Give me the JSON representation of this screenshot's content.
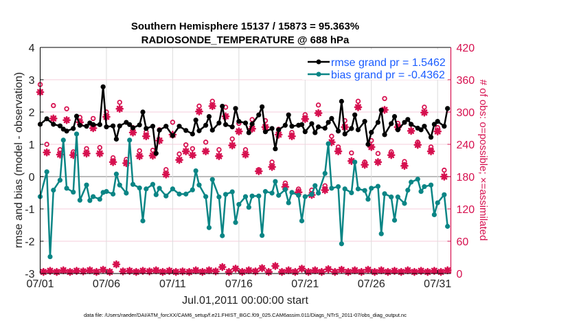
{
  "chart_data": {
    "type": "line",
    "title": "Southern Hemisphere 15137 / 15873 = 95.363%",
    "subtitle": "RADIOSONDE_TEMPERATURE @ 688 hPa",
    "xlabel": "Jul.01,2011 00:00:00 start",
    "ylabel": "rmse and bias (model - observation)",
    "ylabel_right": "# of obs: o=possible; ×=assimilated",
    "footer": "data file: /Users/raeder/DAI/ATM_forcXX/CAM6_setup/f.e21.FHIST_BGC.f09_025.CAM6assim.011/Diags_NTrS_2011-07/obs_diag_output.nc",
    "xlim": [
      "07/01 00:00",
      "08/01 00:00"
    ],
    "ylim": [
      -3,
      4
    ],
    "ylim_right": [
      0,
      420
    ],
    "x_ticks": [
      "07/01",
      "07/06",
      "07/11",
      "07/16",
      "07/21",
      "07/26",
      "07/31"
    ],
    "y_ticks": [
      "-3",
      "-2",
      "-1",
      "0",
      "1",
      "2",
      "3",
      "4"
    ],
    "y_ticks_right": [
      "0",
      "60",
      "120",
      "180",
      "240",
      "300",
      "360",
      "420"
    ],
    "grid": true,
    "legend_placement": "top-right",
    "colors": {
      "rmse": "#000000",
      "bias": "#0a8585",
      "obs": "#d6104f",
      "legend_text": "#1a5cff"
    },
    "legend": [
      {
        "label": "rmse grand pr = 1.5462",
        "series": "rmse"
      },
      {
        "label": "bias grand pr = -0.4362",
        "series": "bias"
      }
    ],
    "series_columns": [
      "time",
      "rmse",
      "bias"
    ],
    "series": [
      [
        "07/01 00:00",
        1.62,
        -0.62
      ],
      [
        "07/01 12:00",
        1.79,
        0.15
      ],
      [
        "07/01 18:00",
        null,
        -2.48
      ],
      [
        "07/02 00:00",
        1.62,
        -0.42
      ],
      [
        "07/02 12:00",
        1.57,
        -0.11
      ],
      [
        "07/02 18:00",
        1.47,
        1.13
      ],
      [
        "07/03 00:00",
        1.41,
        -0.36
      ],
      [
        "07/03 12:00",
        1.49,
        -0.48
      ],
      [
        "07/03 18:00",
        1.87,
        1.32
      ],
      [
        "07/04 00:00",
        1.59,
        -0.73
      ],
      [
        "07/04 12:00",
        1.56,
        -0.26
      ],
      [
        "07/04 18:00",
        1.66,
        -0.74
      ],
      [
        "07/05 00:00",
        1.61,
        -0.62
      ],
      [
        "07/05 12:00",
        1.61,
        -0.7
      ],
      [
        "07/05 18:00",
        2.78,
        -0.49
      ],
      [
        "07/06 00:00",
        1.54,
        -0.46
      ],
      [
        "07/06 12:00",
        1.57,
        -0.54
      ],
      [
        "07/06 18:00",
        1.16,
        0.08
      ],
      [
        "07/07 00:00",
        1.57,
        -0.26
      ],
      [
        "07/07 12:00",
        1.68,
        -0.51
      ],
      [
        "07/07 18:00",
        1.61,
        1.13
      ],
      [
        "07/08 00:00",
        1.51,
        -0.24
      ],
      [
        "07/08 12:00",
        1.6,
        -0.35
      ],
      [
        "07/08 18:00",
        2.0,
        -1.37
      ],
      [
        "07/09 00:00",
        1.49,
        -0.38
      ],
      [
        "07/09 12:00",
        1.56,
        -0.24
      ],
      [
        "07/09 18:00",
        0.72,
        -0.56
      ],
      [
        "07/10 00:00",
        1.44,
        -0.36
      ],
      [
        "07/10 12:00",
        1.56,
        -0.6
      ],
      [
        "07/11 00:00",
        1.27,
        -0.38
      ],
      [
        "07/11 12:00",
        1.56,
        -0.54
      ],
      [
        "07/12 00:00",
        1.43,
        -0.54
      ],
      [
        "07/12 12:00",
        1.32,
        -0.41
      ],
      [
        "07/12 18:00",
        1.75,
        0.18
      ],
      [
        "07/13 00:00",
        1.42,
        -0.26
      ],
      [
        "07/13 12:00",
        1.59,
        -0.62
      ],
      [
        "07/13 18:00",
        1.86,
        -1.58
      ],
      [
        "07/14 00:00",
        1.44,
        -0.09
      ],
      [
        "07/14 12:00",
        1.66,
        -0.63
      ],
      [
        "07/14 18:00",
        2.18,
        -1.83
      ],
      [
        "07/15 00:00",
        1.61,
        -0.55
      ],
      [
        "07/15 12:00",
        1.54,
        -0.47
      ],
      [
        "07/15 18:00",
        2.11,
        -1.42
      ],
      [
        "07/16 00:00",
        1.71,
        -0.86
      ],
      [
        "07/16 12:00",
        1.66,
        -0.62
      ],
      [
        "07/16 18:00",
        1.36,
        -0.95
      ],
      [
        "07/17 00:00",
        1.63,
        -0.6
      ],
      [
        "07/17 12:00",
        1.91,
        -0.6
      ],
      [
        "07/17 18:00",
        2.16,
        -1.82
      ],
      [
        "07/18 00:00",
        1.39,
        -0.46
      ],
      [
        "07/18 12:00",
        1.49,
        -0.51
      ],
      [
        "07/18 18:00",
        0.86,
        -0.15
      ],
      [
        "07/19 00:00",
        1.45,
        -0.58
      ],
      [
        "07/19 12:00",
        1.59,
        -0.4
      ],
      [
        "07/19 18:00",
        1.91,
        -0.81
      ],
      [
        "07/20 00:00",
        1.56,
        -0.49
      ],
      [
        "07/20 12:00",
        1.59,
        -0.58
      ],
      [
        "07/20 18:00",
        1.61,
        -1.37
      ],
      [
        "07/21 00:00",
        1.39,
        -0.62
      ],
      [
        "07/21 12:00",
        1.64,
        -0.55
      ],
      [
        "07/21 18:00",
        1.36,
        -0.28
      ],
      [
        "07/22 00:00",
        1.54,
        -0.51
      ],
      [
        "07/22 12:00",
        1.5,
        0.1
      ],
      [
        "07/22 18:00",
        1.68,
        1.02
      ],
      [
        "07/23 00:00",
        1.8,
        -0.36
      ],
      [
        "07/23 12:00",
        1.41,
        -0.31
      ],
      [
        "07/23 18:00",
        2.33,
        -2.08
      ],
      [
        "07/24 00:00",
        1.32,
        -0.38
      ],
      [
        "07/24 12:00",
        1.49,
        -0.5
      ],
      [
        "07/24 18:00",
        1.91,
        0.45
      ],
      [
        "07/25 00:00",
        1.45,
        -0.38
      ],
      [
        "07/25 12:00",
        1.71,
        -0.43
      ],
      [
        "07/25 18:00",
        1.0,
        -0.7
      ],
      [
        "07/26 00:00",
        1.37,
        -0.36
      ],
      [
        "07/26 12:00",
        1.68,
        -0.3
      ],
      [
        "07/26 18:00",
        2.06,
        -1.77
      ],
      [
        "07/27 00:00",
        1.3,
        -0.53
      ],
      [
        "07/27 12:00",
        1.64,
        -0.63
      ],
      [
        "07/27 18:00",
        1.86,
        -1.35
      ],
      [
        "07/28 00:00",
        1.45,
        -0.63
      ],
      [
        "07/28 12:00",
        1.68,
        -0.83
      ],
      [
        "07/28 18:00",
        1.77,
        -0.42
      ],
      [
        "07/29 00:00",
        1.62,
        -0.17
      ],
      [
        "07/29 12:00",
        1.5,
        -0.08
      ],
      [
        "07/29 18:00",
        1.45,
        -0.46
      ],
      [
        "07/30 00:00",
        1.56,
        -0.31
      ],
      [
        "07/30 12:00",
        1.22,
        -0.26
      ],
      [
        "07/30 18:00",
        1.62,
        -1.18
      ],
      [
        "07/31 00:00",
        1.71,
        -0.81
      ],
      [
        "07/31 12:00",
        1.56,
        -0.56
      ],
      [
        "07/31 18:00",
        2.11,
        -1.54
      ]
    ],
    "obs_count_columns": [
      "time",
      "possible",
      "assimilated"
    ],
    "obs_counts": [
      [
        "07/01 00:00",
        351,
        337
      ],
      [
        "07/01 12:00",
        240,
        225
      ],
      [
        "07/02 00:00",
        312,
        288
      ],
      [
        "07/02 12:00",
        230,
        221
      ],
      [
        "07/03 00:00",
        306,
        285
      ],
      [
        "07/03 12:00",
        226,
        220
      ],
      [
        "07/04 00:00",
        290,
        281
      ],
      [
        "07/04 12:00",
        232,
        223
      ],
      [
        "07/05 00:00",
        288,
        270
      ],
      [
        "07/05 12:00",
        234,
        223
      ],
      [
        "07/06 00:00",
        300,
        291
      ],
      [
        "07/06 12:00",
        215,
        207
      ],
      [
        "07/07 00:00",
        318,
        306
      ],
      [
        "07/07 12:00",
        212,
        205
      ],
      [
        "07/08 00:00",
        271,
        262
      ],
      [
        "07/08 12:00",
        228,
        218
      ],
      [
        "07/09 00:00",
        263,
        255
      ],
      [
        "07/09 12:00",
        229,
        219
      ],
      [
        "07/10 00:00",
        267,
        247
      ],
      [
        "07/10 12:00",
        193,
        184
      ],
      [
        "07/11 00:00",
        281,
        258
      ],
      [
        "07/11 12:00",
        222,
        211
      ],
      [
        "07/12 00:00",
        239,
        227
      ],
      [
        "07/12 12:00",
        232,
        220
      ],
      [
        "07/13 00:00",
        311,
        301
      ],
      [
        "07/13 12:00",
        244,
        227
      ],
      [
        "07/14 00:00",
        320,
        311
      ],
      [
        "07/14 12:00",
        230,
        218
      ],
      [
        "07/15 00:00",
        309,
        292
      ],
      [
        "07/15 12:00",
        250,
        238
      ],
      [
        "07/16 00:00",
        279,
        264
      ],
      [
        "07/16 12:00",
        230,
        221
      ],
      [
        "07/17 00:00",
        286,
        269
      ],
      [
        "07/17 12:00",
        193,
        190
      ],
      [
        "07/18 00:00",
        284,
        272
      ],
      [
        "07/18 12:00",
        207,
        198
      ],
      [
        "07/19 00:00",
        268,
        258
      ],
      [
        "07/19 12:00",
        168,
        161
      ],
      [
        "07/20 00:00",
        262,
        255
      ],
      [
        "07/20 12:00",
        157,
        151
      ],
      [
        "07/21 00:00",
        295,
        287
      ],
      [
        "07/21 12:00",
        155,
        146
      ],
      [
        "07/22 00:00",
        313,
        298
      ],
      [
        "07/22 12:00",
        163,
        155
      ],
      [
        "07/23 00:00",
        255,
        244
      ],
      [
        "07/23 12:00",
        235,
        227
      ],
      [
        "07/24 00:00",
        284,
        272
      ],
      [
        "07/24 12:00",
        224,
        209
      ],
      [
        "07/25 00:00",
        320,
        309
      ],
      [
        "07/25 12:00",
        207,
        202
      ],
      [
        "07/26 00:00",
        247,
        235
      ],
      [
        "07/26 12:00",
        223,
        207
      ],
      [
        "07/27 00:00",
        325,
        304
      ],
      [
        "07/27 12:00",
        226,
        220
      ],
      [
        "07/28 00:00",
        279,
        272
      ],
      [
        "07/28 12:00",
        208,
        200
      ],
      [
        "07/29 00:00",
        277,
        265
      ],
      [
        "07/29 12:00",
        244,
        239
      ],
      [
        "07/30 00:00",
        309,
        299
      ],
      [
        "07/30 12:00",
        235,
        227
      ],
      [
        "07/31 00:00",
        271,
        264
      ],
      [
        "07/31 12:00",
        192,
        180
      ],
      [
        "07/01 06:00",
        3,
        3
      ],
      [
        "07/01 18:00",
        5,
        5
      ],
      [
        "07/02 06:00",
        3,
        3
      ],
      [
        "07/02 18:00",
        6,
        6
      ],
      [
        "07/03 06:00",
        3,
        3
      ],
      [
        "07/03 18:00",
        5,
        5
      ],
      [
        "07/04 06:00",
        4,
        4
      ],
      [
        "07/04 18:00",
        6,
        6
      ],
      [
        "07/05 06:00",
        3,
        3
      ],
      [
        "07/05 18:00",
        7,
        7
      ],
      [
        "07/06 06:00",
        3,
        3
      ],
      [
        "07/06 18:00",
        17,
        17
      ],
      [
        "07/07 06:00",
        4,
        4
      ],
      [
        "07/07 18:00",
        5,
        5
      ],
      [
        "07/08 06:00",
        3,
        3
      ],
      [
        "07/08 18:00",
        5,
        5
      ],
      [
        "07/09 06:00",
        4,
        4
      ],
      [
        "07/09 18:00",
        6,
        6
      ],
      [
        "07/10 06:00",
        3,
        3
      ],
      [
        "07/10 18:00",
        5,
        5
      ],
      [
        "07/11 06:00",
        3,
        3
      ],
      [
        "07/11 18:00",
        4,
        4
      ],
      [
        "07/12 06:00",
        3,
        3
      ],
      [
        "07/12 18:00",
        6,
        6
      ],
      [
        "07/13 06:00",
        3,
        3
      ],
      [
        "07/13 18:00",
        6,
        6
      ],
      [
        "07/14 06:00",
        4,
        4
      ],
      [
        "07/14 18:00",
        12,
        12
      ],
      [
        "07/15 06:00",
        3,
        3
      ],
      [
        "07/15 18:00",
        9,
        9
      ],
      [
        "07/16 06:00",
        3,
        3
      ],
      [
        "07/16 18:00",
        6,
        6
      ],
      [
        "07/17 06:00",
        4,
        4
      ],
      [
        "07/17 18:00",
        10,
        10
      ],
      [
        "07/18 06:00",
        3,
        3
      ],
      [
        "07/18 18:00",
        14,
        14
      ],
      [
        "07/19 06:00",
        3,
        3
      ],
      [
        "07/19 18:00",
        6,
        6
      ],
      [
        "07/20 06:00",
        3,
        3
      ],
      [
        "07/20 18:00",
        9,
        9
      ],
      [
        "07/21 06:00",
        3,
        3
      ],
      [
        "07/21 18:00",
        6,
        6
      ],
      [
        "07/22 06:00",
        3,
        3
      ],
      [
        "07/22 18:00",
        8,
        8
      ],
      [
        "07/23 06:00",
        3,
        3
      ],
      [
        "07/23 18:00",
        7,
        7
      ],
      [
        "07/24 06:00",
        3,
        3
      ],
      [
        "07/24 18:00",
        6,
        6
      ],
      [
        "07/25 06:00",
        3,
        3
      ],
      [
        "07/25 18:00",
        7,
        7
      ],
      [
        "07/26 06:00",
        3,
        3
      ],
      [
        "07/26 18:00",
        6,
        6
      ],
      [
        "07/27 06:00",
        3,
        3
      ],
      [
        "07/27 18:00",
        5,
        5
      ],
      [
        "07/28 06:00",
        3,
        3
      ],
      [
        "07/28 18:00",
        6,
        6
      ],
      [
        "07/29 06:00",
        3,
        3
      ],
      [
        "07/29 18:00",
        5,
        5
      ],
      [
        "07/30 06:00",
        3,
        3
      ],
      [
        "07/30 18:00",
        5,
        5
      ],
      [
        "07/31 06:00",
        3,
        3
      ],
      [
        "07/31 18:00",
        6,
        6
      ]
    ]
  }
}
